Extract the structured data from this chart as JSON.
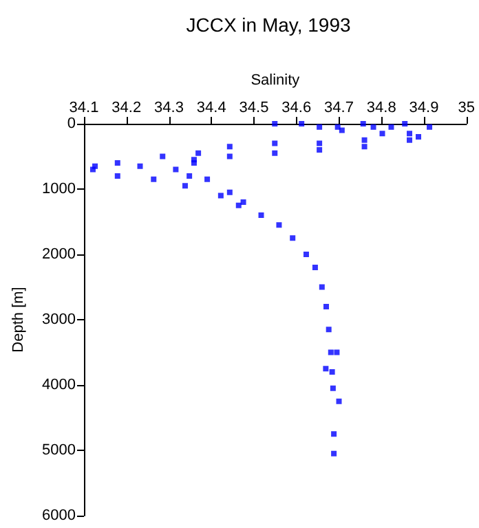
{
  "chart_data": {
    "type": "scatter",
    "title": "JCCX in May, 1993",
    "xlabel": "Salinity",
    "ylabel": "Depth [m]",
    "xlim": [
      34.1,
      35
    ],
    "xticks": [
      34.1,
      34.2,
      34.3,
      34.4,
      34.5,
      34.6,
      34.7,
      34.8,
      34.9,
      35
    ],
    "ylim": [
      6000,
      0
    ],
    "yticks": [
      0,
      1000,
      2000,
      3000,
      4000,
      5000,
      6000
    ],
    "grid": false,
    "marker": "square",
    "series": [
      {
        "color": "#0000ff",
        "x": [
          34.757,
          34.823,
          34.913,
          34.866,
          34.887,
          34.802,
          34.707,
          34.654,
          34.549,
          34.612,
          34.697,
          34.855,
          34.781,
          34.76,
          34.654,
          34.549,
          34.443,
          34.369,
          34.285,
          34.179,
          34.126,
          34.121,
          34.866,
          34.76,
          34.654,
          34.549,
          34.443,
          34.359,
          34.232,
          34.316,
          34.359,
          34.348,
          34.179,
          34.264,
          34.338,
          34.422,
          34.464,
          34.517,
          34.559,
          34.591,
          34.623,
          34.644,
          34.66,
          34.67,
          34.676,
          34.681,
          34.684,
          34.686,
          34.688,
          34.688,
          34.695,
          34.669,
          34.7,
          34.39,
          34.443,
          34.475
        ],
        "values": [
          0,
          50,
          50,
          150,
          200,
          150,
          100,
          50,
          0,
          0,
          50,
          0,
          50,
          250,
          300,
          300,
          350,
          450,
          500,
          600,
          650,
          700,
          250,
          350,
          400,
          450,
          500,
          550,
          650,
          700,
          600,
          800,
          800,
          850,
          950,
          1100,
          1250,
          1400,
          1550,
          1750,
          2000,
          2200,
          2500,
          2800,
          3150,
          3500,
          3800,
          4050,
          4750,
          5050,
          3500,
          3750,
          4250,
          850,
          1050,
          1200
        ]
      }
    ]
  }
}
